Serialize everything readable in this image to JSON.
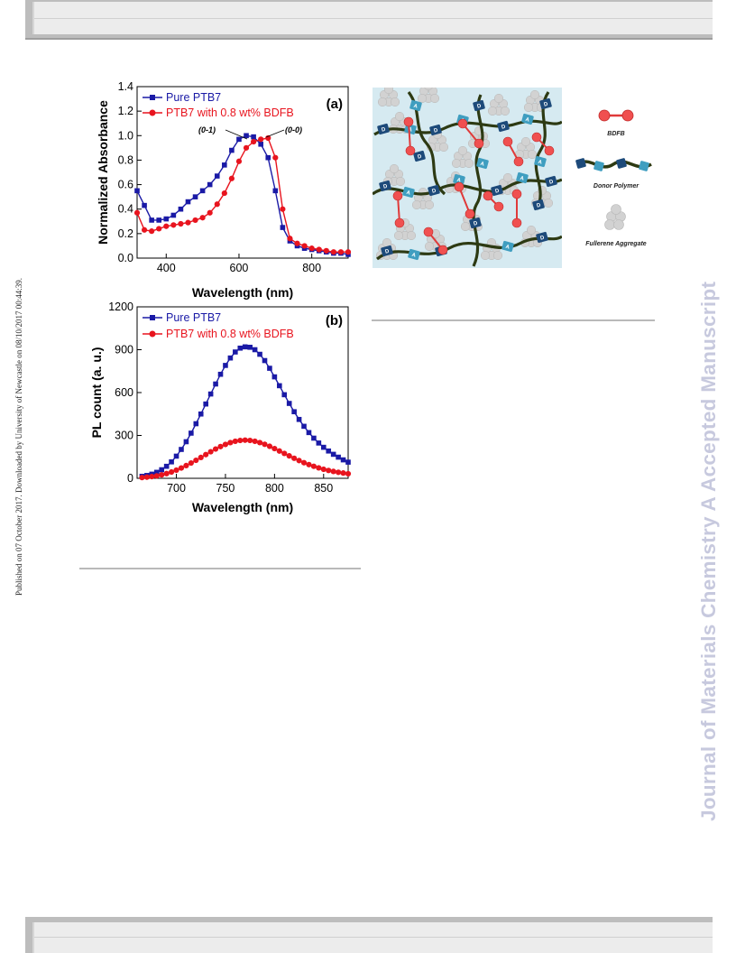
{
  "side_text": {
    "published": "Published on 07 October 2017. Downloaded by University of Newcastle on 08/10/2017 00:44:39.",
    "journal_watermark": "Journal of Materials Chemistry A Accepted Manuscript"
  },
  "figure_a": {
    "panel_label": "(a)",
    "annotation_left": "(0-1)",
    "annotation_right": "(0-0)",
    "chart_data": {
      "type": "line",
      "xlabel": "Wavelength (nm)",
      "ylabel": "Normalized Absorbance",
      "xlim": [
        320,
        900
      ],
      "ylim": [
        0.0,
        1.4
      ],
      "x_ticks": [
        "400",
        "600",
        "800"
      ],
      "y_ticks": [
        "0.0",
        "0.2",
        "0.4",
        "0.6",
        "0.8",
        "1.0",
        "1.2",
        "1.4"
      ],
      "legend_position": "top-left",
      "series": [
        {
          "name": "Pure PTB7",
          "color": "#1a1aa6",
          "marker": "square",
          "x": [
            320,
            340,
            360,
            380,
            400,
            420,
            440,
            460,
            480,
            500,
            520,
            540,
            560,
            580,
            600,
            620,
            640,
            660,
            680,
            700,
            720,
            740,
            760,
            780,
            800,
            820,
            840,
            860,
            880,
            900
          ],
          "y": [
            0.55,
            0.43,
            0.31,
            0.31,
            0.32,
            0.35,
            0.4,
            0.46,
            0.5,
            0.55,
            0.6,
            0.67,
            0.76,
            0.88,
            0.97,
            1.0,
            0.99,
            0.93,
            0.82,
            0.55,
            0.25,
            0.14,
            0.1,
            0.08,
            0.07,
            0.06,
            0.05,
            0.04,
            0.04,
            0.03
          ]
        },
        {
          "name": "PTB7 with 0.8 wt% BDFB",
          "color": "#e8141e",
          "marker": "circle",
          "x": [
            320,
            340,
            360,
            380,
            400,
            420,
            440,
            460,
            480,
            500,
            520,
            540,
            560,
            580,
            600,
            620,
            640,
            660,
            680,
            700,
            720,
            740,
            760,
            780,
            800,
            820,
            840,
            860,
            880,
            900
          ],
          "y": [
            0.37,
            0.23,
            0.22,
            0.24,
            0.26,
            0.27,
            0.28,
            0.29,
            0.31,
            0.33,
            0.37,
            0.44,
            0.53,
            0.65,
            0.79,
            0.9,
            0.95,
            0.97,
            0.98,
            0.82,
            0.4,
            0.16,
            0.12,
            0.1,
            0.08,
            0.07,
            0.06,
            0.05,
            0.05,
            0.05
          ]
        }
      ]
    }
  },
  "figure_b": {
    "panel_label": "(b)",
    "chart_data": {
      "type": "line",
      "xlabel": "Wavelength (nm)",
      "ylabel": "PL count (a. u.)",
      "xlim": [
        660,
        875
      ],
      "ylim": [
        0,
        1200
      ],
      "x_ticks": [
        "700",
        "750",
        "800",
        "850"
      ],
      "y_ticks": [
        "0",
        "300",
        "600",
        "900",
        "1200"
      ],
      "legend_position": "top-left",
      "series": [
        {
          "name": "Pure PTB7",
          "color": "#1a1aa6",
          "marker": "square",
          "x": [
            665,
            670,
            675,
            680,
            685,
            690,
            695,
            700,
            705,
            710,
            715,
            720,
            725,
            730,
            735,
            740,
            745,
            750,
            755,
            760,
            765,
            770,
            775,
            780,
            785,
            790,
            795,
            800,
            805,
            810,
            815,
            820,
            825,
            830,
            835,
            840,
            845,
            850,
            855,
            860,
            865,
            870,
            875
          ],
          "y": [
            14,
            20,
            29,
            42,
            60,
            84,
            115,
            155,
            202,
            256,
            316,
            382,
            450,
            520,
            590,
            660,
            728,
            790,
            842,
            884,
            911,
            920,
            917,
            900,
            868,
            824,
            770,
            710,
            648,
            585,
            524,
            466,
            412,
            364,
            320,
            281,
            247,
            217,
            191,
            168,
            148,
            129,
            113
          ]
        },
        {
          "name": "PTB7 with 0.8 wt% BDFB",
          "color": "#e8141e",
          "marker": "circle",
          "x": [
            665,
            670,
            675,
            680,
            685,
            690,
            695,
            700,
            705,
            710,
            715,
            720,
            725,
            730,
            735,
            740,
            745,
            750,
            755,
            760,
            765,
            770,
            775,
            780,
            785,
            790,
            795,
            800,
            805,
            810,
            815,
            820,
            825,
            830,
            835,
            840,
            845,
            850,
            855,
            860,
            865,
            870,
            875
          ],
          "y": [
            5,
            8,
            12,
            17,
            24,
            33,
            44,
            57,
            72,
            89,
            107,
            126,
            146,
            166,
            186,
            205,
            222,
            237,
            250,
            259,
            265,
            267,
            265,
            259,
            250,
            238,
            224,
            208,
            191,
            174,
            157,
            140,
            124,
            109,
            96,
            84,
            73,
            63,
            55,
            48,
            42,
            37,
            32
          ]
        }
      ]
    }
  },
  "illustration": {
    "legend_items": [
      "BDFB",
      "Donor Polymer",
      "Fullerene Aggregate"
    ],
    "unit_letters": {
      "donor": "D",
      "acceptor": "A"
    },
    "colors": {
      "background": "#d6eaf1",
      "chain": "#2d3a13",
      "donor_unit": "#1d4a7a",
      "acceptor_unit": "#3f9ec0",
      "bdfb": "#f05050",
      "fullerene": "#d2d2d2"
    }
  }
}
